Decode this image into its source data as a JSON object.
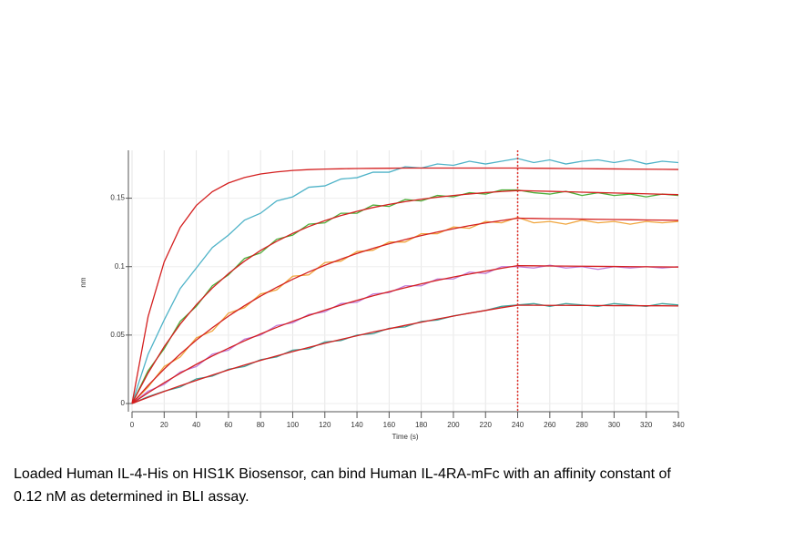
{
  "chart_data": {
    "type": "line",
    "x_label": "Time (s)",
    "y_label": "nm",
    "xlim": [
      0,
      340
    ],
    "ylim": [
      -0.006,
      0.185
    ],
    "xticks": [
      0,
      20,
      40,
      60,
      80,
      100,
      120,
      140,
      160,
      180,
      200,
      220,
      240,
      260,
      280,
      300,
      320,
      340
    ],
    "yticks": [
      0,
      0.05,
      0.1,
      0.15
    ],
    "grid": true,
    "vline": 240,
    "vline_color": "#e0302a",
    "x": [
      0,
      10,
      20,
      30,
      40,
      50,
      60,
      70,
      80,
      90,
      100,
      110,
      120,
      130,
      140,
      150,
      160,
      170,
      180,
      190,
      200,
      210,
      220,
      230,
      240,
      250,
      260,
      270,
      280,
      290,
      300,
      310,
      320,
      330,
      340
    ],
    "series": [
      {
        "color": "#4fb3c8",
        "values": [
          0,
          0.036,
          0.061,
          0.084,
          0.099,
          0.114,
          0.123,
          0.134,
          0.139,
          0.148,
          0.151,
          0.158,
          0.159,
          0.164,
          0.165,
          0.169,
          0.169,
          0.173,
          0.172,
          0.175,
          0.174,
          0.177,
          0.175,
          0.177,
          0.179,
          0.176,
          0.178,
          0.175,
          0.177,
          0.178,
          0.176,
          0.178,
          0.175,
          0.177,
          0.176
        ]
      },
      {
        "color": "#4caf3a",
        "values": [
          0,
          0.024,
          0.04,
          0.06,
          0.071,
          0.086,
          0.094,
          0.106,
          0.11,
          0.12,
          0.123,
          0.131,
          0.132,
          0.139,
          0.139,
          0.145,
          0.144,
          0.149,
          0.148,
          0.152,
          0.151,
          0.154,
          0.153,
          0.156,
          0.156,
          0.154,
          0.153,
          0.155,
          0.152,
          0.154,
          0.152,
          0.153,
          0.151,
          0.153,
          0.152
        ]
      },
      {
        "color": "#f0a53c",
        "values": [
          0,
          0.012,
          0.027,
          0.034,
          0.048,
          0.053,
          0.066,
          0.07,
          0.08,
          0.083,
          0.093,
          0.094,
          0.103,
          0.104,
          0.111,
          0.112,
          0.118,
          0.118,
          0.124,
          0.124,
          0.129,
          0.128,
          0.133,
          0.132,
          0.136,
          0.132,
          0.133,
          0.131,
          0.134,
          0.132,
          0.133,
          0.131,
          0.133,
          0.132,
          0.133
        ]
      },
      {
        "color": "#c07ad8",
        "values": [
          0,
          0.009,
          0.014,
          0.023,
          0.027,
          0.036,
          0.039,
          0.047,
          0.05,
          0.057,
          0.059,
          0.065,
          0.067,
          0.073,
          0.074,
          0.08,
          0.081,
          0.086,
          0.086,
          0.091,
          0.091,
          0.096,
          0.095,
          0.1,
          0.1,
          0.099,
          0.101,
          0.099,
          0.1,
          0.098,
          0.1,
          0.099,
          0.1,
          0.099,
          0.1
        ]
      },
      {
        "color": "#3fa39a",
        "values": [
          0,
          0.005,
          0.009,
          0.012,
          0.018,
          0.02,
          0.025,
          0.027,
          0.032,
          0.034,
          0.039,
          0.04,
          0.045,
          0.046,
          0.05,
          0.051,
          0.055,
          0.056,
          0.06,
          0.061,
          0.064,
          0.066,
          0.068,
          0.071,
          0.072,
          0.073,
          0.071,
          0.073,
          0.072,
          0.071,
          0.073,
          0.072,
          0.071,
          0.073,
          0.072
        ]
      },
      {
        "color": "#d42020",
        "values": [
          0,
          0.0635,
          0.1034,
          0.1287,
          0.1447,
          0.1548,
          0.1611,
          0.1651,
          0.1677,
          0.1692,
          0.1703,
          0.1709,
          0.1713,
          0.1715,
          0.1717,
          0.1718,
          0.1719,
          0.172,
          0.172,
          0.172,
          0.172,
          0.172,
          0.172,
          0.172,
          0.172,
          0.1719,
          0.1718,
          0.1717,
          0.1716,
          0.1715,
          0.1714,
          0.1713,
          0.1712,
          0.1711,
          0.171
        ]
      },
      {
        "color": "#d42020",
        "values": [
          0,
          0.0223,
          0.0415,
          0.058,
          0.0722,
          0.0844,
          0.0949,
          0.104,
          0.1118,
          0.1185,
          0.1243,
          0.1293,
          0.1336,
          0.1373,
          0.1404,
          0.1432,
          0.1455,
          0.1475,
          0.1492,
          0.1507,
          0.152,
          0.1531,
          0.1541,
          0.1549,
          0.1556,
          0.1553,
          0.155,
          0.1547,
          0.1544,
          0.1541,
          0.1538,
          0.1535,
          0.1532,
          0.1529,
          0.1526
        ]
      },
      {
        "color": "#d42020",
        "values": [
          0,
          0.0132,
          0.0252,
          0.0362,
          0.0463,
          0.0554,
          0.0638,
          0.0715,
          0.0785,
          0.0849,
          0.0908,
          0.0961,
          0.101,
          0.1055,
          0.1096,
          0.1134,
          0.1167,
          0.1198,
          0.1227,
          0.1253,
          0.1277,
          0.1299,
          0.1319,
          0.1337,
          0.1354,
          0.1352,
          0.135,
          0.1349,
          0.1347,
          0.1346,
          0.1344,
          0.1343,
          0.1341,
          0.134,
          0.1338
        ]
      },
      {
        "color": "#d42020",
        "values": [
          0,
          0.0078,
          0.0152,
          0.0221,
          0.0286,
          0.0347,
          0.0404,
          0.0458,
          0.0508,
          0.0556,
          0.0601,
          0.0643,
          0.0682,
          0.0719,
          0.0754,
          0.0787,
          0.0817,
          0.0846,
          0.0874,
          0.09,
          0.0924,
          0.0946,
          0.0967,
          0.0988,
          0.1007,
          0.1006,
          0.1005,
          0.1004,
          0.1003,
          0.1002,
          0.1001,
          0.1,
          0.0999,
          0.0998,
          0.0997
        ]
      },
      {
        "color": "#d42020",
        "values": [
          0,
          0.0045,
          0.0088,
          0.013,
          0.0169,
          0.0208,
          0.0245,
          0.0281,
          0.0315,
          0.0348,
          0.0379,
          0.041,
          0.044,
          0.0468,
          0.0495,
          0.0522,
          0.0546,
          0.0571,
          0.0594,
          0.0617,
          0.0639,
          0.066,
          0.068,
          0.07,
          0.0718,
          0.0718,
          0.0717,
          0.0717,
          0.0716,
          0.0716,
          0.0715,
          0.0715,
          0.0714,
          0.0714,
          0.0713
        ]
      }
    ]
  },
  "caption": [
    "Loaded Human IL-4-His on HIS1K Biosensor, can bind Human IL-4RA-mFc with an affinity constant of",
    "0.12 nM as determined in BLI assay."
  ]
}
